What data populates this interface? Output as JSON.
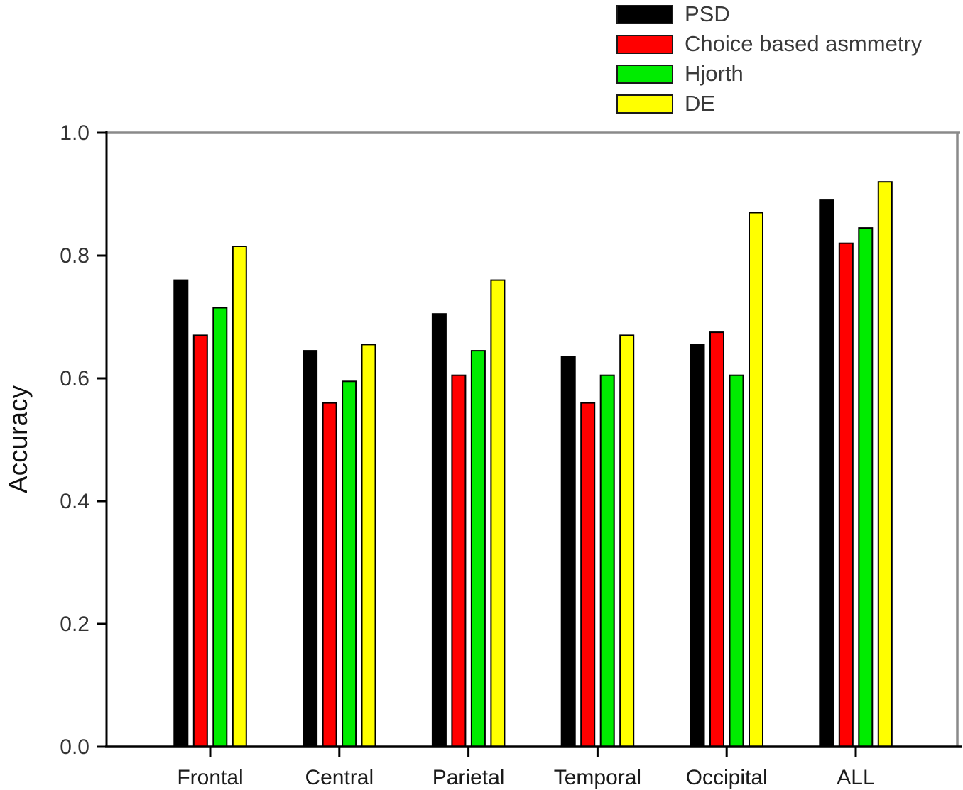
{
  "figure": {
    "background": "#ffffff",
    "axis_color": "#000000",
    "frame_color": "#8a8a8a",
    "tick_label_color": "#333333",
    "bar_outline_color": "#000000"
  },
  "chart_data": {
    "type": "bar",
    "title": "",
    "xlabel": "",
    "ylabel": "Accuracy",
    "ylim": [
      0.0,
      1.0
    ],
    "yticks": [
      0.0,
      0.2,
      0.4,
      0.6,
      0.8,
      1.0
    ],
    "ytick_labels": [
      "0.0",
      "0.2",
      "0.4",
      "0.6",
      "0.8",
      "1.0"
    ],
    "grid": false,
    "legend_position": "top-right-above-plot",
    "categories": [
      "Frontal",
      "Central",
      "Parietal",
      "Temporal",
      "Occipital",
      "ALL"
    ],
    "series": [
      {
        "name": "PSD",
        "color": "#000000",
        "values": [
          0.76,
          0.645,
          0.705,
          0.635,
          0.655,
          0.89
        ]
      },
      {
        "name": "Choice based asmmetry",
        "color": "#ff0000",
        "values": [
          0.67,
          0.56,
          0.605,
          0.56,
          0.675,
          0.82
        ]
      },
      {
        "name": "Hjorth",
        "color": "#00ec00",
        "values": [
          0.715,
          0.595,
          0.645,
          0.605,
          0.605,
          0.845
        ]
      },
      {
        "name": "DE",
        "color": "#ffff00",
        "values": [
          0.815,
          0.655,
          0.76,
          0.67,
          0.87,
          0.92
        ]
      }
    ]
  }
}
